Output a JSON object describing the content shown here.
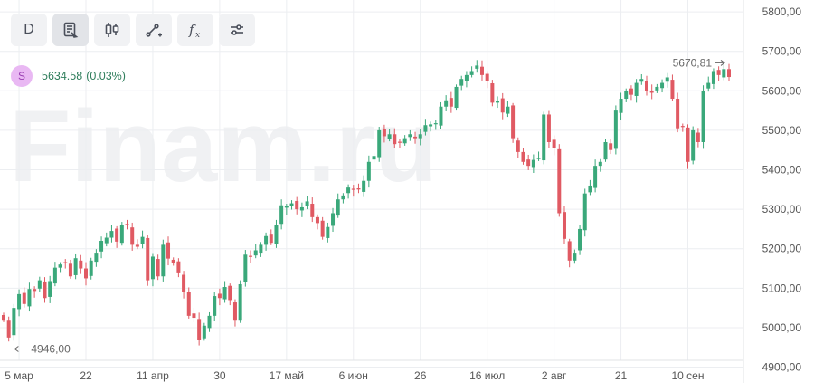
{
  "watermark": "Finam.ru",
  "toolbar": {
    "timeframe_label": "D",
    "items": [
      {
        "name": "timeframe-button",
        "label": "D"
      },
      {
        "name": "chart-settings-icon"
      },
      {
        "name": "candlestick-icon"
      },
      {
        "name": "draw-line-icon"
      },
      {
        "name": "indicators-icon",
        "label": "f"
      },
      {
        "name": "sliders-icon"
      }
    ]
  },
  "legend": {
    "symbol_letter": "S",
    "price": "5634.58",
    "change": "(0.03%)"
  },
  "colors": {
    "up": "#3aa87a",
    "down": "#e05a63",
    "grid": "#eceef1",
    "axis_text": "#555555"
  },
  "chart_data": {
    "type": "candlestick",
    "y_axis": {
      "min": 4860,
      "max": 5830,
      "ticks": [
        4900,
        5000,
        5100,
        5200,
        5300,
        5400,
        5500,
        5600,
        5700,
        5800
      ],
      "tick_labels": [
        "4900,00",
        "5000,00",
        "5100,00",
        "5200,00",
        "5300,00",
        "5400,00",
        "5500,00",
        "5600,00",
        "5700,00",
        "5800,00"
      ]
    },
    "x_axis": {
      "labels": [
        "5 мар",
        "22",
        "11 апр",
        "30",
        "17 май",
        "6 июн",
        "26",
        "16 июл",
        "2 авг",
        "21",
        "10 сен"
      ],
      "label_index": [
        3,
        16,
        29,
        42,
        55,
        68,
        81,
        94,
        107,
        120,
        133
      ]
    },
    "annotations": {
      "low_label": "4946,00",
      "low_value": 4946,
      "high_label": "5670,81",
      "high_value": 5670.81
    },
    "closes": [
      5020,
      4975,
      5050,
      5085,
      5060,
      5098,
      5093,
      5120,
      5075,
      5118,
      5152,
      5160,
      5165,
      5130,
      5176,
      5150,
      5125,
      5170,
      5190,
      5220,
      5228,
      5245,
      5218,
      5260,
      5260,
      5210,
      5205,
      5230,
      5120,
      5180,
      5130,
      5210,
      5175,
      5165,
      5140,
      5090,
      5030,
      5025,
      4970,
      5005,
      5030,
      5080,
      5075,
      5103,
      5070,
      5020,
      5110,
      5185,
      5180,
      5196,
      5210,
      5232,
      5215,
      5260,
      5310,
      5308,
      5315,
      5300,
      5305,
      5320,
      5280,
      5265,
      5230,
      5255,
      5290,
      5325,
      5335,
      5355,
      5350,
      5350,
      5372,
      5420,
      5435,
      5500,
      5485,
      5490,
      5465,
      5470,
      5480,
      5490,
      5480,
      5490,
      5513,
      5515,
      5518,
      5560,
      5576,
      5560,
      5610,
      5630,
      5640,
      5650,
      5664,
      5640,
      5625,
      5570,
      5575,
      5545,
      5560,
      5480,
      5445,
      5420,
      5410,
      5425,
      5430,
      5540,
      5470,
      5455,
      5290,
      5225,
      5170,
      5190,
      5250,
      5340,
      5360,
      5410,
      5420,
      5470,
      5450,
      5550,
      5580,
      5600,
      5590,
      5620,
      5630,
      5600,
      5595,
      5610,
      5620,
      5634,
      5580,
      5505,
      5510,
      5420,
      5500,
      5470,
      5600,
      5620,
      5650,
      5640,
      5655,
      5635
    ]
  }
}
